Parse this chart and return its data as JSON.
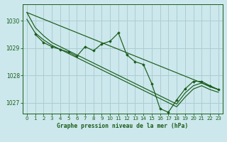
{
  "bg_color": "#cce8ec",
  "grid_color": "#aacdd4",
  "line_color": "#1a5c1a",
  "title": "Graphe pression niveau de la mer (hPa)",
  "xlim": [
    -0.5,
    23.5
  ],
  "ylim": [
    1026.6,
    1030.6
  ],
  "yticks": [
    1027,
    1028,
    1029,
    1030
  ],
  "xticks": [
    0,
    1,
    2,
    3,
    4,
    5,
    6,
    7,
    8,
    9,
    10,
    11,
    12,
    13,
    14,
    15,
    16,
    17,
    18,
    19,
    20,
    21,
    22,
    23
  ],
  "line1_x": [
    0,
    1,
    2,
    3,
    4,
    5,
    6,
    7,
    8,
    9,
    10,
    11,
    12,
    13,
    14,
    15,
    16,
    17,
    18,
    19,
    20,
    21,
    22,
    23
  ],
  "line1_y": [
    1030.3,
    1029.75,
    1029.45,
    1029.2,
    1029.05,
    1028.9,
    1028.75,
    1028.6,
    1028.45,
    1028.3,
    1028.15,
    1028.0,
    1027.85,
    1027.7,
    1027.55,
    1027.4,
    1027.25,
    1027.1,
    1026.95,
    1027.35,
    1027.62,
    1027.72,
    1027.58,
    1027.48
  ],
  "line2_x": [
    0,
    1,
    2,
    3,
    4,
    5,
    6,
    7,
    8,
    9,
    10,
    11,
    12,
    13,
    14,
    15,
    16,
    17,
    18,
    19,
    20,
    21,
    22,
    23
  ],
  "line2_y": [
    1030.05,
    1029.55,
    1029.3,
    1029.1,
    1028.95,
    1028.8,
    1028.65,
    1028.5,
    1028.35,
    1028.2,
    1028.05,
    1027.9,
    1027.75,
    1027.6,
    1027.45,
    1027.3,
    1027.15,
    1027.0,
    1026.85,
    1027.2,
    1027.5,
    1027.62,
    1027.48,
    1027.38
  ],
  "line3_x": [
    1,
    2,
    3,
    4,
    5,
    6,
    7,
    8,
    9,
    10,
    11,
    12,
    13,
    14,
    15,
    16,
    17,
    18,
    19,
    20,
    21,
    22,
    23
  ],
  "line3_y": [
    1029.5,
    1029.2,
    1029.05,
    1028.95,
    1028.85,
    1028.7,
    1029.05,
    1028.9,
    1029.15,
    1029.25,
    1029.55,
    1028.75,
    1028.5,
    1028.4,
    1027.7,
    1026.78,
    1026.65,
    1027.1,
    1027.5,
    1027.78,
    1027.78,
    1027.62,
    1027.48
  ],
  "line4_x": [
    0,
    23
  ],
  "line4_y": [
    1030.3,
    1027.48
  ]
}
